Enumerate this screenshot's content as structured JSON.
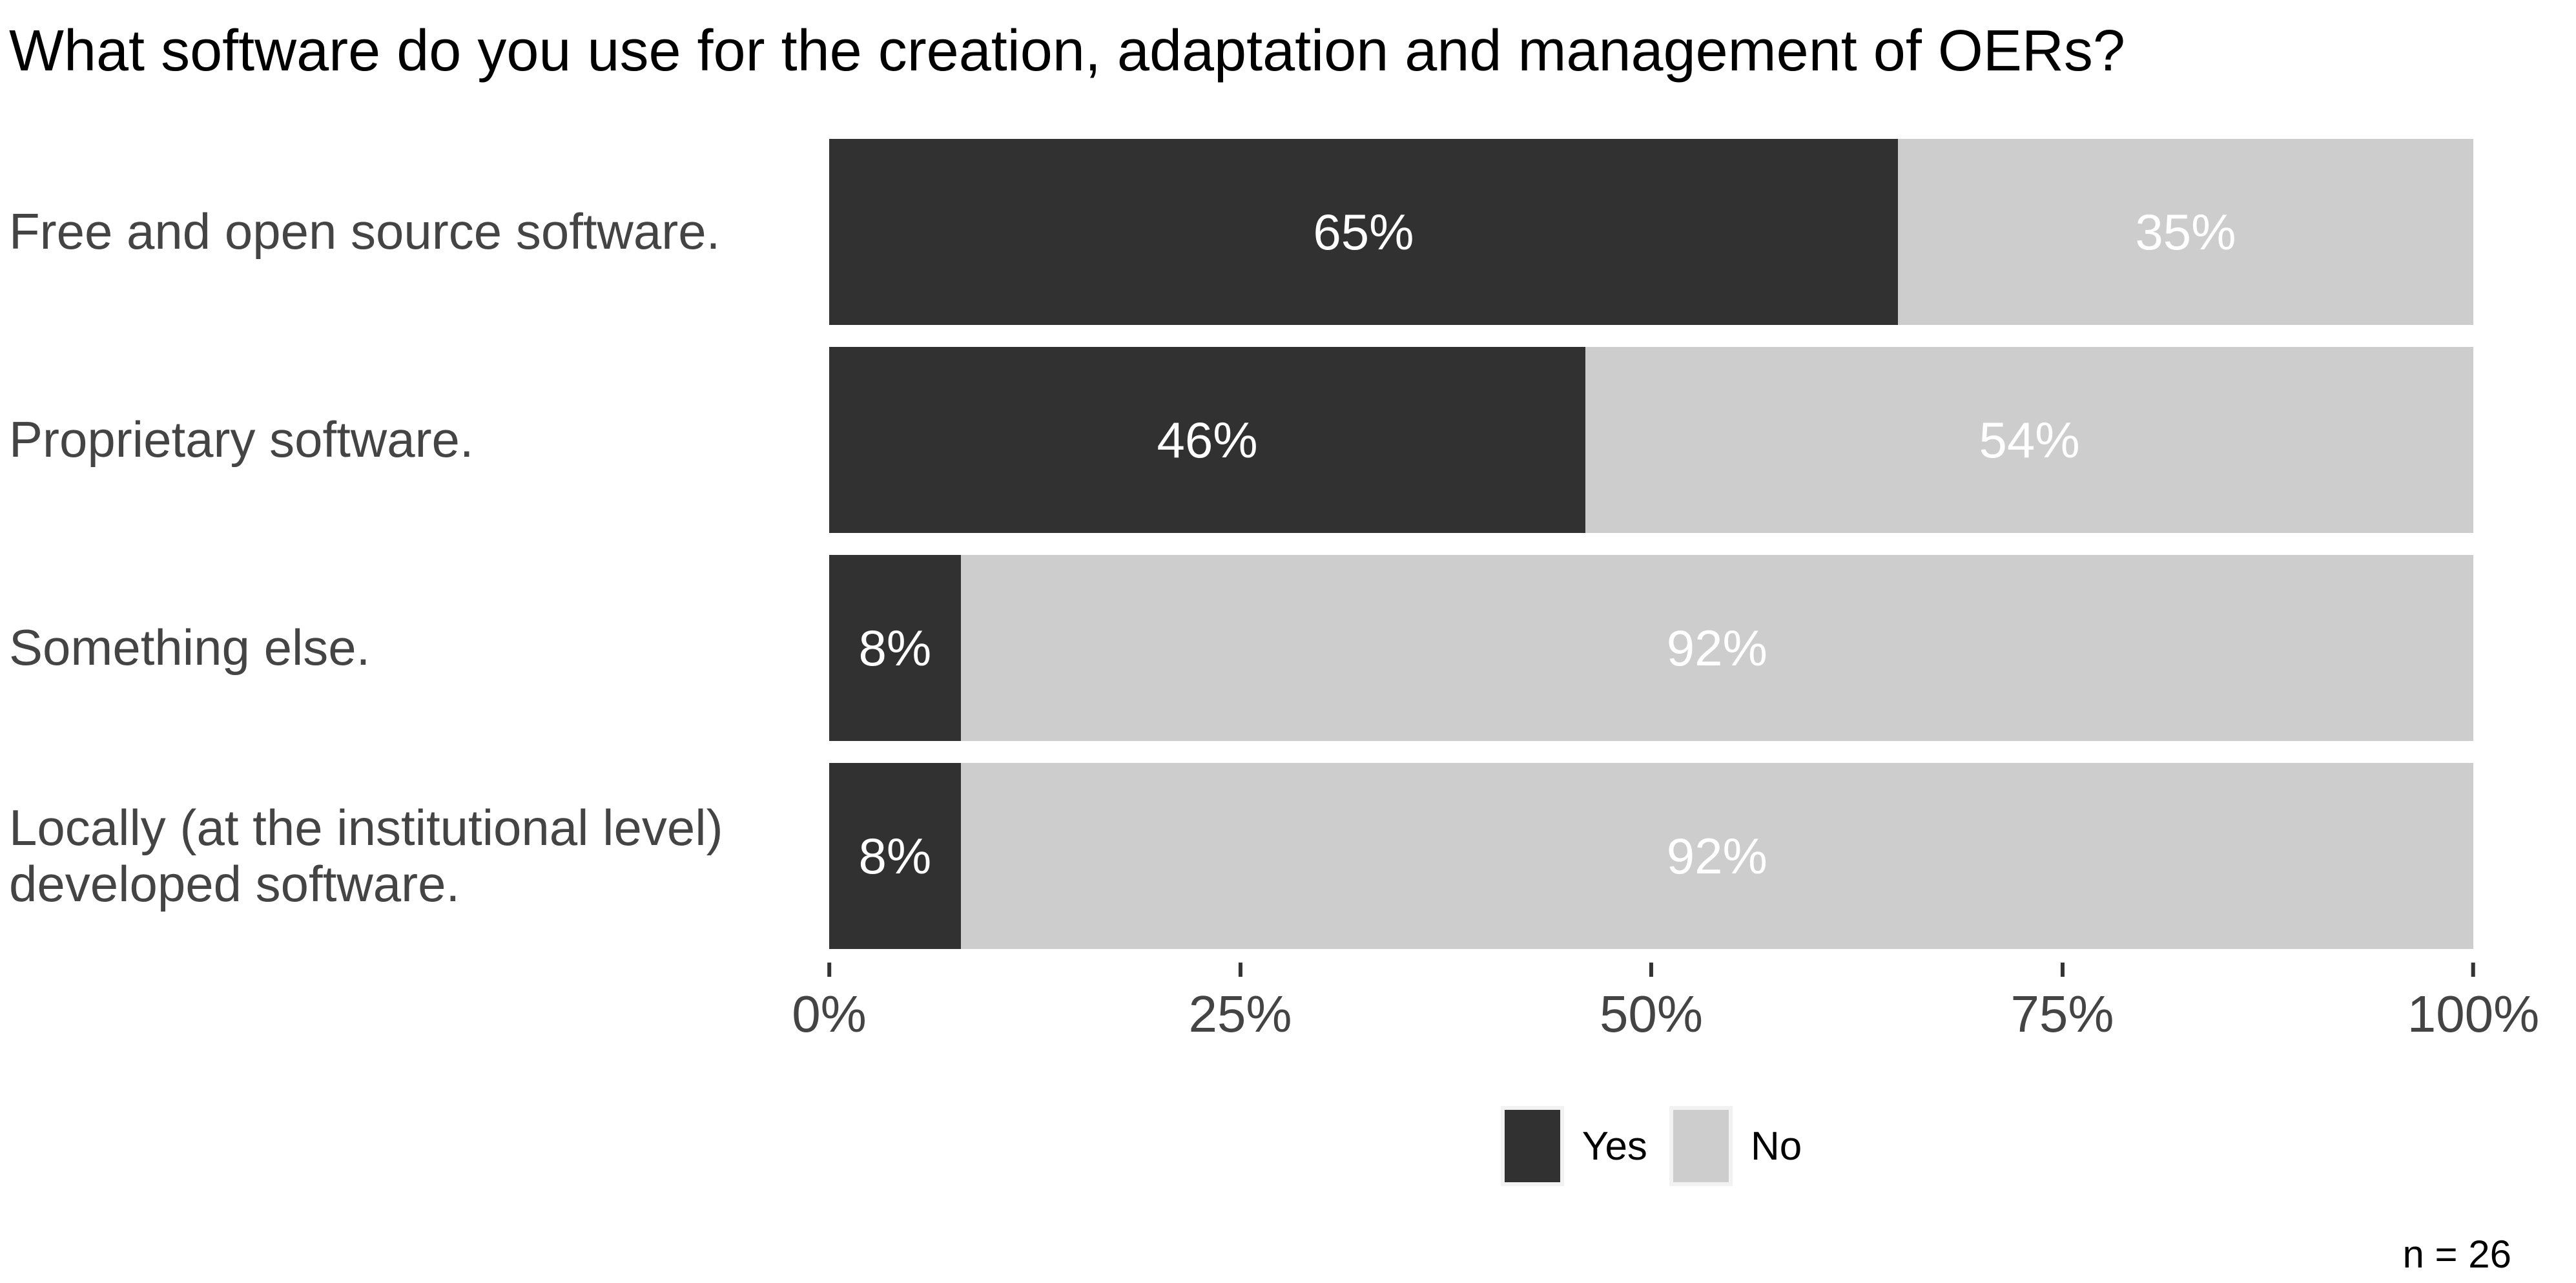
{
  "title": "What software do you use for the creation, adaptation and management of OERs?",
  "n_label": "n = 26",
  "colors": {
    "yes": "#313131",
    "no": "#cdcdcd",
    "bar_value_text": "#ffffff",
    "axis_text": "#444444",
    "title_text": "#000000",
    "tick_mark": "#333333",
    "legend_key_background": "#f2f2f2"
  },
  "legend": {
    "position": "bottom-center",
    "items": [
      {
        "label": "Yes",
        "color": "#313131"
      },
      {
        "label": "No",
        "color": "#cdcdcd"
      }
    ]
  },
  "chart_data": {
    "type": "bar",
    "orientation": "horizontal",
    "stacked": true,
    "title": "What software do you use for the creation, adaptation and management of OERs?",
    "categories": [
      "Free and open source software.",
      "Proprietary software.",
      "Something else.",
      "Locally (at the institutional level)\ndeveloped software."
    ],
    "series": [
      {
        "name": "Yes",
        "color": "#313131",
        "values": [
          65,
          46,
          8,
          8
        ],
        "labels": [
          "65%",
          "46%",
          "8%",
          "8%"
        ]
      },
      {
        "name": "No",
        "color": "#cdcdcd",
        "values": [
          35,
          54,
          92,
          92
        ],
        "labels": [
          "35%",
          "54%",
          "92%",
          "92%"
        ]
      }
    ],
    "x_axis": {
      "range": [
        0,
        100
      ],
      "ticks": [
        0,
        25,
        50,
        75,
        100
      ],
      "tick_labels": [
        "0%",
        "25%",
        "50%",
        "75%",
        "100%"
      ]
    },
    "grid": false,
    "legend_position": "bottom",
    "sample_size": 26
  }
}
